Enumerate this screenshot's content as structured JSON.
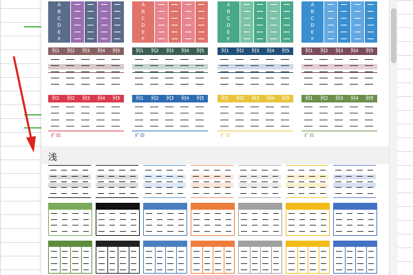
{
  "section": {
    "label": "浅"
  },
  "header_cols": [
    "列1",
    "列2",
    "列3",
    "列4",
    "列5"
  ],
  "row_letters": [
    "A",
    "B",
    "C",
    "D",
    "E",
    "F"
  ],
  "cut_label": "扩 四",
  "colors": {
    "top_row_styles": [
      "#5b6b8a",
      "#e0736c",
      "#4aa88a",
      "#3a8fd0"
    ],
    "top_row_alt": [
      "#9a6fb0",
      "#e8858f",
      "#7cc3a8",
      "#63a8e0"
    ],
    "mid_headers": [
      "#8a6060",
      "#3c5e52",
      "#1f4e79",
      "#7a4c5a"
    ],
    "band_headers": [
      "#d9394a",
      "#2b6cb0",
      "#e8c43a",
      "#6a8f4a"
    ],
    "light_accents": [
      "#222222",
      "#222222",
      "#6e9fd6",
      "#f0956b",
      "#aaaaaa",
      "#f0c73a",
      "#5f84c6"
    ],
    "medium_headers": [
      "#7aaa5a",
      "#111111",
      "#4a7fbf",
      "#ee7d3c",
      "#a0a0a0",
      "#f2bb18",
      "#4472c4"
    ],
    "grid_headers": [
      "#5c8c3c",
      "#222222",
      "#4a7fbf",
      "#ee7d3c",
      "#a0a0a0",
      "#f2bb18",
      "#4472c4"
    ]
  }
}
